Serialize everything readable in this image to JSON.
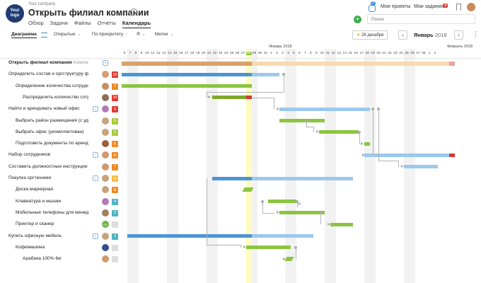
{
  "header": {
    "logo_text": "Your\nlogo",
    "company": "Your company",
    "title": "Открыть филиал компании",
    "tabs": [
      "Обзор",
      "Задачи",
      "Файлы",
      "Отчёты",
      "Календарь"
    ],
    "active_tab": "Календарь",
    "notif_count": "2",
    "my_projects": "Мои проекты",
    "my_tasks": "Мои задания",
    "my_tasks_count": "4",
    "add_label": "+",
    "search_placeholder": "Поиск"
  },
  "toolbar": {
    "view": "Диаграмма",
    "filter_status": "Открытые",
    "sort": "По приоритету",
    "assignee": "Я",
    "tags": "Метки",
    "date_button": "28 декабря",
    "month": "Январь",
    "year": "2018",
    "prev": "‹",
    "next": "›",
    "more": "⋮"
  },
  "timeline": {
    "month_left": "Январь 2018",
    "month_right": "Февраль 2018",
    "today": "28",
    "days": [
      "6",
      "7",
      "8",
      "9",
      "10",
      "11",
      "12",
      "13",
      "14",
      "15",
      "16",
      "17",
      "18",
      "19",
      "20",
      "21",
      "22",
      "23",
      "24",
      "25",
      "26",
      "27",
      "28",
      "29",
      "30",
      "31",
      "1",
      "2",
      "3",
      "4",
      "5",
      "6",
      "7",
      "8",
      "9",
      "10",
      "11",
      "12",
      "13",
      "14",
      "15",
      "16",
      "17",
      "18",
      "19",
      "20",
      "21",
      "22",
      "23",
      "24",
      "25",
      "26",
      "27",
      "28",
      "1",
      "2"
    ]
  },
  "rows": [
    {
      "label": "Открыть филиал компании",
      "hint": "Компания Тест",
      "level": 0,
      "expand": "+",
      "badge": "",
      "badge_color": "",
      "avatar": ""
    },
    {
      "label": "Определить состав и оргструктуру ф",
      "level": 0,
      "expand": "",
      "badge": "10",
      "badge_color": "#e03b32",
      "avatar": "#d3a07a"
    },
    {
      "label": "Определение количества сотрудников",
      "level": 1,
      "expand": "",
      "badge": "7",
      "badge_color": "#f08a24",
      "avatar": "#c48f63"
    },
    {
      "label": "Распределить количество сотрудни",
      "level": 2,
      "expand": "",
      "badge": "10",
      "badge_color": "#e03b32",
      "avatar": "#8c6d5a"
    },
    {
      "label": "Найти и арендовать новый офис",
      "level": 0,
      "expand": "⌄",
      "badge": "9",
      "badge_color": "#e03b32",
      "avatar": "#b47ab8"
    },
    {
      "label": "Выбрать район размещения (с удобной",
      "level": 1,
      "expand": "",
      "badge": "5",
      "badge_color": "#a9c93d",
      "avatar": "#c7a27a"
    },
    {
      "label": "Выбрать офис (укомплектован)",
      "level": 1,
      "expand": "",
      "badge": "5",
      "badge_color": "#a9c93d",
      "avatar": "#c7a27a"
    },
    {
      "label": "Подготовить документы по аренде офи",
      "level": 1,
      "expand": "",
      "badge": "6",
      "badge_color": "#f08a24",
      "avatar": "#9a6040"
    },
    {
      "label": "Набор сотрудников",
      "level": 0,
      "expand": "⌄",
      "badge": "8",
      "badge_color": "#f08a24",
      "avatar": "#d09a6e"
    },
    {
      "label": "Составить должностные инструкции",
      "level": 0,
      "expand": "",
      "badge": "7",
      "badge_color": "#f08a24",
      "avatar": "#d09a6e"
    },
    {
      "label": "Покупка оргтехники",
      "level": 0,
      "expand": "⌄",
      "badge": "4",
      "badge_color": "#f5c043",
      "avatar": "#c7a27a"
    },
    {
      "label": "Доска маркерная",
      "level": 1,
      "expand": "",
      "badge": "8",
      "badge_color": "#f08a24",
      "avatar": "#c7a27a"
    },
    {
      "label": "Клавиатура и мышки",
      "level": 1,
      "expand": "",
      "badge": "4",
      "badge_color": "#4fb3c4",
      "avatar": "#b47ab8"
    },
    {
      "label": "Мобильные телефоны для менеджеров",
      "level": 1,
      "expand": "",
      "badge": "3",
      "badge_color": "#4fb3c4",
      "avatar": "#a08060"
    },
    {
      "label": "Принтер и сканер",
      "level": 1,
      "expand": "",
      "badge": "",
      "badge_color": "#dddddd",
      "avatar": "#6fb24a",
      "avatar_text": "ПС"
    },
    {
      "label": "Купить офисную мебель",
      "level": 0,
      "expand": "⌄",
      "badge": "3",
      "badge_color": "#4fb3c4",
      "avatar": "#c7a27a"
    },
    {
      "label": "Кофемашина",
      "level": 1,
      "expand": "",
      "badge": "",
      "badge_color": "#dddddd",
      "avatar": "#33508a"
    },
    {
      "label": "Арабика 100% 6кг",
      "level": 2,
      "expand": "",
      "badge": "",
      "badge_color": "#dddddd",
      "avatar": "#d09a6e"
    }
  ],
  "colors": {
    "blue": "#4c95d3",
    "blue_light": "#9cc8ee",
    "green": "#8bc53f",
    "green_dark": "#7fa82a",
    "orange": "#d9a26b",
    "orange_light": "#f7d9b3",
    "red": "#d33a32",
    "today": "#fffcc0"
  }
}
